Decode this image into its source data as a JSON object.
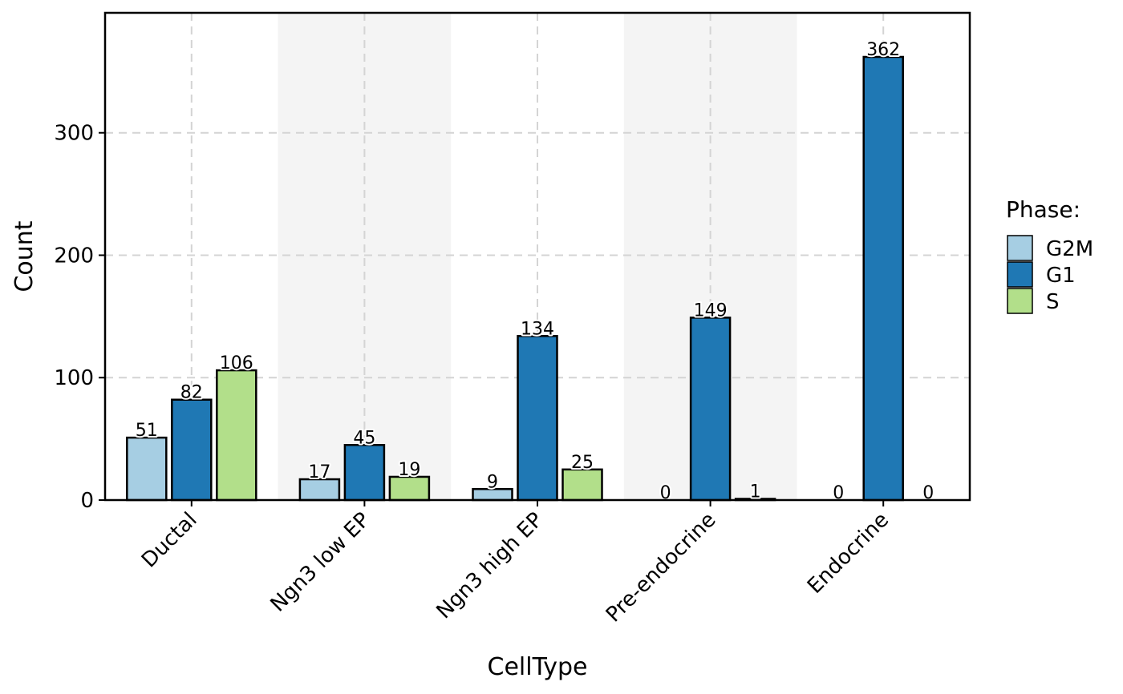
{
  "chart_data": {
    "type": "bar",
    "xlabel": "CellType",
    "ylabel": "Count",
    "ylim": [
      0,
      398
    ],
    "yticks": [
      0,
      100,
      200,
      300
    ],
    "grid": true,
    "legend_placement": "right",
    "legend_title": "Phase:",
    "categories": [
      "Ductal",
      "Ngn3 low EP",
      "Ngn3 high EP",
      "Pre-endocrine",
      "Endocrine"
    ],
    "series": [
      {
        "name": "G2M",
        "color": "#a6cee3",
        "values": [
          51,
          17,
          9,
          0,
          0
        ]
      },
      {
        "name": "G1",
        "color": "#1f78b4",
        "values": [
          82,
          45,
          134,
          149,
          362
        ]
      },
      {
        "name": "S",
        "color": "#b2df8a",
        "values": [
          106,
          19,
          25,
          1,
          0
        ]
      }
    ],
    "alternating_band_color": "#f4f4f4"
  }
}
